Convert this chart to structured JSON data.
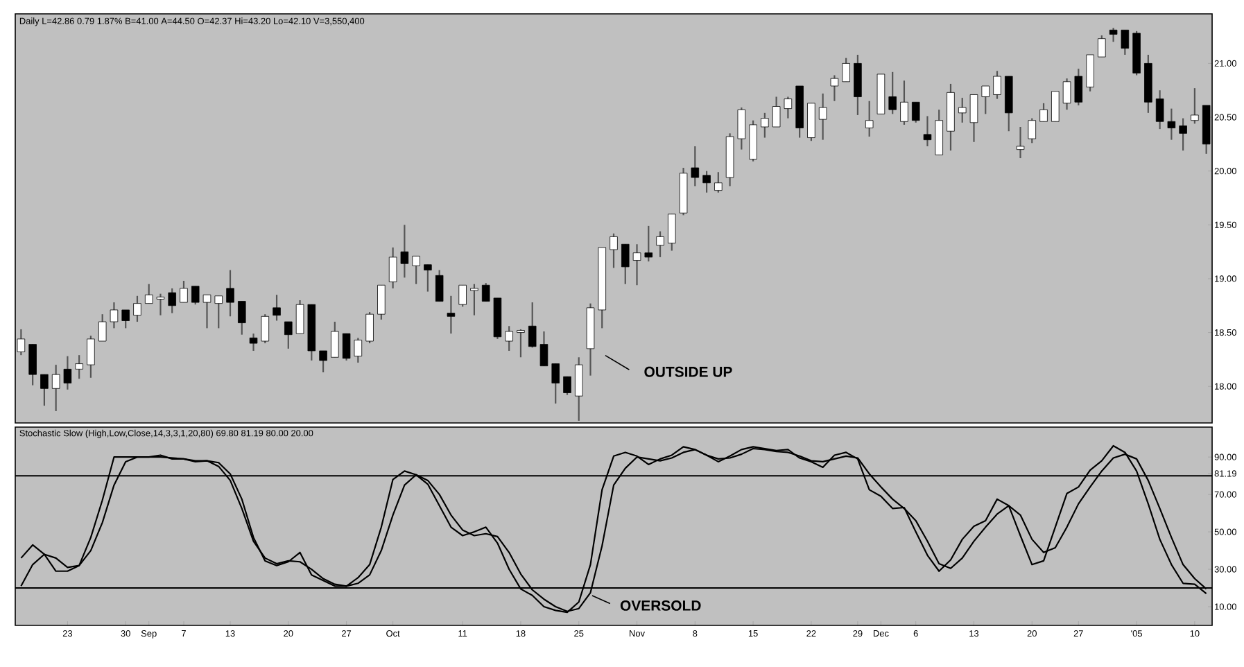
{
  "chart_data": [
    {
      "type": "candlestick",
      "title": "Daily L=42.86 0.79 1.87% B=41.00 A=44.50 O=42.37 Hi=43.20 Lo=42.10 V=3,550,400",
      "categories": [
        null,
        null,
        null,
        null,
        null,
        null,
        null,
        null,
        null,
        null,
        null,
        null,
        null,
        null,
        null,
        null,
        null,
        null,
        null,
        null,
        null,
        null,
        null,
        null,
        null,
        null,
        null,
        null,
        null,
        null,
        null,
        null,
        null,
        null,
        null,
        null,
        null,
        null,
        null,
        null,
        null,
        null,
        null,
        null,
        null,
        null,
        null,
        null,
        null,
        null,
        null,
        null,
        null,
        null,
        null,
        null,
        null,
        null,
        null,
        null,
        null,
        null,
        null,
        null,
        null,
        null,
        null,
        null,
        null,
        null,
        null,
        null,
        null,
        null,
        null,
        null,
        null,
        null,
        null,
        null,
        null,
        null,
        null,
        null,
        null,
        null,
        null,
        null,
        null,
        null,
        null,
        null,
        null,
        null,
        null,
        null,
        null,
        null,
        null,
        null,
        null,
        null,
        null
      ],
      "ohlc": [
        [
          18.32,
          18.53,
          18.29,
          18.44
        ],
        [
          18.39,
          18.39,
          18.01,
          18.11
        ],
        [
          18.11,
          18.11,
          17.82,
          17.98
        ],
        [
          17.98,
          18.2,
          17.77,
          18.11
        ],
        [
          18.16,
          18.28,
          17.97,
          18.03
        ],
        [
          18.16,
          18.29,
          18.07,
          18.21
        ],
        [
          18.2,
          18.47,
          18.08,
          18.44
        ],
        [
          18.42,
          18.67,
          18.42,
          18.6
        ],
        [
          18.6,
          18.78,
          18.54,
          18.71
        ],
        [
          18.71,
          18.71,
          18.54,
          18.61
        ],
        [
          18.66,
          18.84,
          18.6,
          18.77
        ],
        [
          18.77,
          18.95,
          18.77,
          18.85
        ],
        [
          18.81,
          18.86,
          18.66,
          18.83
        ],
        [
          18.87,
          18.91,
          18.68,
          18.75
        ],
        [
          18.78,
          18.98,
          18.78,
          18.91
        ],
        [
          18.93,
          18.93,
          18.76,
          18.78
        ],
        [
          18.78,
          18.85,
          18.54,
          18.85
        ],
        [
          18.77,
          18.84,
          18.54,
          18.84
        ],
        [
          18.91,
          19.08,
          18.65,
          18.78
        ],
        [
          18.79,
          18.79,
          18.48,
          18.59
        ],
        [
          18.45,
          18.49,
          18.33,
          18.4
        ],
        [
          18.42,
          18.67,
          18.4,
          18.65
        ],
        [
          18.73,
          18.85,
          18.61,
          18.66
        ],
        [
          18.6,
          18.6,
          18.35,
          18.48
        ],
        [
          18.49,
          18.8,
          18.49,
          18.76
        ],
        [
          18.76,
          18.76,
          18.24,
          18.33
        ],
        [
          18.33,
          18.33,
          18.13,
          18.24
        ],
        [
          18.27,
          18.6,
          18.27,
          18.51
        ],
        [
          18.49,
          18.49,
          18.24,
          18.26
        ],
        [
          18.28,
          18.45,
          18.22,
          18.43
        ],
        [
          18.42,
          18.69,
          18.4,
          18.67
        ],
        [
          18.67,
          18.94,
          18.62,
          18.94
        ],
        [
          18.97,
          19.29,
          18.91,
          19.2
        ],
        [
          19.25,
          19.5,
          19.01,
          19.14
        ],
        [
          19.12,
          19.21,
          18.95,
          19.21
        ],
        [
          19.13,
          19.13,
          18.88,
          19.08
        ],
        [
          19.03,
          19.08,
          18.79,
          18.79
        ],
        [
          18.68,
          18.84,
          18.49,
          18.65
        ],
        [
          18.76,
          18.94,
          18.74,
          18.94
        ],
        [
          18.89,
          18.95,
          18.66,
          18.91
        ],
        [
          18.94,
          18.96,
          18.79,
          18.79
        ],
        [
          18.82,
          18.82,
          18.44,
          18.46
        ],
        [
          18.42,
          18.56,
          18.33,
          18.51
        ],
        [
          18.5,
          18.53,
          18.27,
          18.52
        ],
        [
          18.56,
          18.78,
          18.36,
          18.37
        ],
        [
          18.39,
          18.51,
          18.19,
          18.19
        ],
        [
          18.21,
          18.21,
          17.84,
          18.03
        ],
        [
          18.09,
          18.09,
          17.92,
          17.94
        ],
        [
          17.91,
          18.27,
          17.68,
          18.2
        ],
        [
          18.35,
          18.77,
          18.1,
          18.73
        ],
        [
          18.71,
          19.29,
          18.54,
          19.29
        ],
        [
          19.27,
          19.42,
          19.1,
          19.39
        ],
        [
          19.32,
          19.32,
          18.95,
          19.11
        ],
        [
          19.17,
          19.32,
          18.94,
          19.24
        ],
        [
          19.24,
          19.49,
          19.16,
          19.2
        ],
        [
          19.31,
          19.44,
          19.2,
          19.39
        ],
        [
          19.33,
          19.6,
          19.26,
          19.6
        ],
        [
          19.61,
          20.03,
          19.59,
          19.98
        ],
        [
          20.03,
          20.23,
          19.86,
          19.94
        ],
        [
          19.96,
          20.0,
          19.8,
          19.89
        ],
        [
          19.82,
          19.99,
          19.8,
          19.89
        ],
        [
          19.94,
          20.35,
          19.86,
          20.32
        ],
        [
          20.3,
          20.59,
          20.2,
          20.57
        ],
        [
          20.11,
          20.47,
          20.09,
          20.43
        ],
        [
          20.41,
          20.54,
          20.31,
          20.49
        ],
        [
          20.41,
          20.69,
          20.41,
          20.6
        ],
        [
          20.58,
          20.69,
          20.49,
          20.67
        ],
        [
          20.79,
          20.79,
          20.31,
          20.4
        ],
        [
          20.31,
          20.63,
          20.28,
          20.63
        ],
        [
          20.48,
          20.72,
          20.29,
          20.59
        ],
        [
          20.79,
          20.89,
          20.65,
          20.86
        ],
        [
          20.83,
          21.05,
          20.83,
          21.0
        ],
        [
          21.0,
          21.08,
          20.52,
          20.69
        ],
        [
          20.4,
          20.65,
          20.32,
          20.47
        ],
        [
          20.53,
          20.9,
          20.53,
          20.9
        ],
        [
          20.69,
          20.92,
          20.53,
          20.57
        ],
        [
          20.46,
          20.84,
          20.43,
          20.64
        ],
        [
          20.64,
          20.64,
          20.45,
          20.47
        ],
        [
          20.34,
          20.51,
          20.23,
          20.29
        ],
        [
          20.15,
          20.57,
          20.15,
          20.47
        ],
        [
          20.37,
          20.81,
          20.19,
          20.73
        ],
        [
          20.54,
          20.68,
          20.45,
          20.59
        ],
        [
          20.45,
          20.71,
          20.27,
          20.71
        ],
        [
          20.69,
          20.79,
          20.53,
          20.79
        ],
        [
          20.71,
          20.93,
          20.67,
          20.88
        ],
        [
          20.88,
          20.88,
          20.37,
          20.54
        ],
        [
          20.2,
          20.41,
          20.12,
          20.23
        ],
        [
          20.3,
          20.49,
          20.26,
          20.47
        ],
        [
          20.46,
          20.63,
          20.46,
          20.57
        ],
        [
          20.46,
          20.74,
          20.46,
          20.74
        ],
        [
          20.63,
          20.86,
          20.57,
          20.83
        ],
        [
          20.88,
          20.95,
          20.61,
          20.64
        ],
        [
          20.78,
          21.08,
          20.74,
          21.08
        ],
        [
          21.06,
          21.26,
          21.06,
          21.23
        ],
        [
          21.31,
          21.33,
          21.2,
          21.27
        ],
        [
          21.31,
          21.31,
          21.08,
          21.14
        ],
        [
          21.28,
          21.3,
          20.89,
          20.91
        ],
        [
          21.0,
          21.08,
          20.54,
          20.64
        ],
        [
          20.67,
          20.75,
          20.39,
          20.46
        ],
        [
          20.46,
          20.58,
          20.29,
          20.4
        ],
        [
          20.42,
          20.49,
          20.19,
          20.35
        ],
        [
          20.47,
          20.77,
          20.44,
          20.52
        ],
        [
          20.61,
          20.61,
          20.16,
          20.25
        ]
      ],
      "ylim": [
        17.66,
        21.46
      ],
      "yticks": [
        {
          "value": 18,
          "label": "18.00"
        },
        {
          "value": 18.5,
          "label": "18.50"
        },
        {
          "value": 19,
          "label": "19.00"
        },
        {
          "value": 19.5,
          "label": "19.50"
        },
        {
          "value": 20,
          "label": "20.00"
        },
        {
          "value": 20.5,
          "label": "20.50"
        },
        {
          "value": 21,
          "label": "21.00"
        }
      ],
      "tick_labels": "y",
      "annotations": [
        "OUTSIDE UP"
      ]
    },
    {
      "type": "line",
      "title": "Stochastic Slow (High,Low,Close,14,3,3,1,20,80) 69.80 81.19 80.00 20.00",
      "categories": [
        null,
        null,
        null,
        null,
        "23",
        null,
        null,
        null,
        null,
        "30",
        null,
        "Sep",
        null,
        null,
        "7",
        null,
        null,
        null,
        "13",
        null,
        null,
        null,
        null,
        "20",
        null,
        null,
        null,
        null,
        "27",
        null,
        null,
        null,
        "Oct",
        null,
        null,
        null,
        null,
        null,
        "11",
        null,
        null,
        null,
        null,
        "18",
        null,
        null,
        null,
        null,
        "25",
        null,
        null,
        null,
        null,
        "Nov",
        null,
        null,
        null,
        null,
        "8",
        null,
        null,
        null,
        null,
        "15",
        null,
        null,
        null,
        null,
        "22",
        null,
        null,
        null,
        "29",
        null,
        "Dec",
        null,
        null,
        "6",
        null,
        null,
        null,
        null,
        "13",
        null,
        null,
        null,
        null,
        "20",
        null,
        null,
        null,
        "27",
        null,
        null,
        null,
        null,
        "'05",
        null,
        null,
        null,
        null,
        "10",
        null
      ],
      "series": [
        {
          "color": "#000000",
          "values": [
            36,
            43,
            38,
            29,
            29,
            32,
            47,
            67,
            90,
            90,
            90,
            90,
            91,
            89,
            89,
            87.5,
            88,
            87,
            81,
            67.5,
            47,
            34.5,
            32,
            34,
            39,
            27,
            24,
            21,
            21,
            25.5,
            32.5,
            52.5,
            78,
            82.5,
            80.5,
            75.5,
            64,
            52.5,
            48,
            50,
            52.5,
            44,
            30,
            19.5,
            16,
            10,
            8,
            7,
            12.5,
            32.5,
            72.5,
            90.5,
            92.5,
            90.5,
            86,
            89,
            91,
            95.5,
            94,
            91,
            87.5,
            90.5,
            94,
            95.5,
            94.5,
            93.5,
            94,
            89.5,
            87.5,
            84.5,
            91,
            92.5,
            89,
            72.5,
            69,
            62.5,
            63,
            50,
            37.5,
            29,
            35,
            46,
            53,
            56,
            67.5,
            64,
            48,
            32.5,
            34.5,
            52.5,
            70.5,
            74,
            83,
            88,
            96,
            92.5,
            82.5,
            65,
            46,
            32.5,
            22.5,
            22,
            17
          ]
        },
        {
          "color": "#000000",
          "values": [
            21,
            32.5,
            38,
            36,
            31,
            32,
            40,
            55,
            75,
            87.5,
            90,
            90,
            90,
            89.5,
            89,
            88,
            88,
            85,
            77.5,
            62.5,
            45,
            36,
            33,
            34.5,
            34,
            30,
            25,
            22,
            21,
            22.5,
            27,
            40,
            59,
            75,
            80.5,
            77.5,
            70,
            59,
            51,
            48,
            49,
            47.5,
            39,
            27.5,
            19,
            14,
            10,
            7.5,
            9,
            17.5,
            42.5,
            75,
            84,
            90,
            89,
            88,
            89.5,
            92.5,
            94,
            91,
            89,
            89.5,
            91.5,
            94.5,
            94,
            93,
            92.5,
            90.5,
            88,
            87.5,
            89,
            90.5,
            89.5,
            81,
            74,
            67.5,
            62.5,
            56,
            45,
            33,
            30.5,
            36,
            45,
            52.5,
            59.5,
            64,
            59,
            46,
            39,
            41.5,
            52.5,
            65,
            74,
            82.5,
            89.5,
            91.5,
            89,
            77.5,
            62.5,
            47,
            32.5,
            25,
            19.5
          ]
        }
      ],
      "ylim": [
        0,
        106
      ],
      "yticks": [
        {
          "value": 10,
          "label": "10.00"
        },
        {
          "value": 30,
          "label": "30.00"
        },
        {
          "value": 50,
          "label": "50.00"
        },
        {
          "value": 70,
          "label": "70.00"
        },
        {
          "value": 81.19,
          "label": "81.19"
        },
        {
          "value": 90,
          "label": "90.00"
        }
      ],
      "ref_lines": [
        {
          "axis": "y",
          "value": 80,
          "color": "#000000"
        },
        {
          "axis": "y",
          "value": 20,
          "color": "#000000"
        }
      ],
      "annotations": [
        "OVERSOLD"
      ]
    }
  ]
}
